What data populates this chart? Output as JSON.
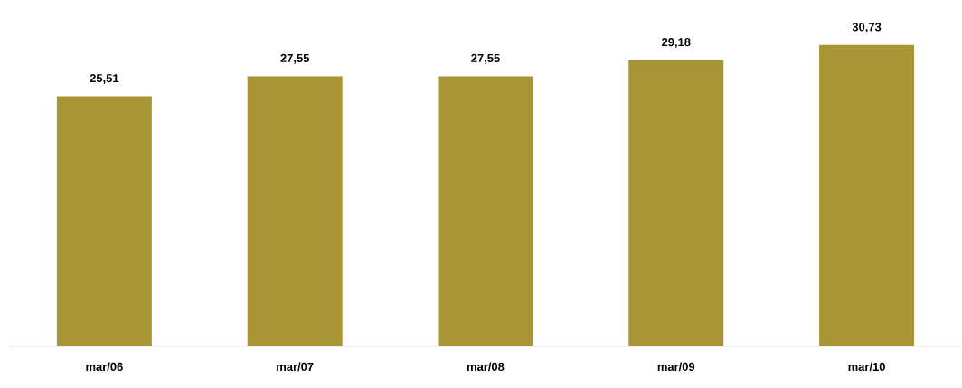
{
  "chart_data": {
    "type": "bar",
    "categories": [
      "mar/06",
      "mar/07",
      "mar/08",
      "mar/09",
      "mar/10"
    ],
    "values": [
      25.51,
      27.55,
      27.55,
      29.18,
      30.73
    ],
    "value_labels": [
      "25,51",
      "27,55",
      "27,55",
      "29,18",
      "30,73"
    ],
    "color": "#a89535"
  }
}
